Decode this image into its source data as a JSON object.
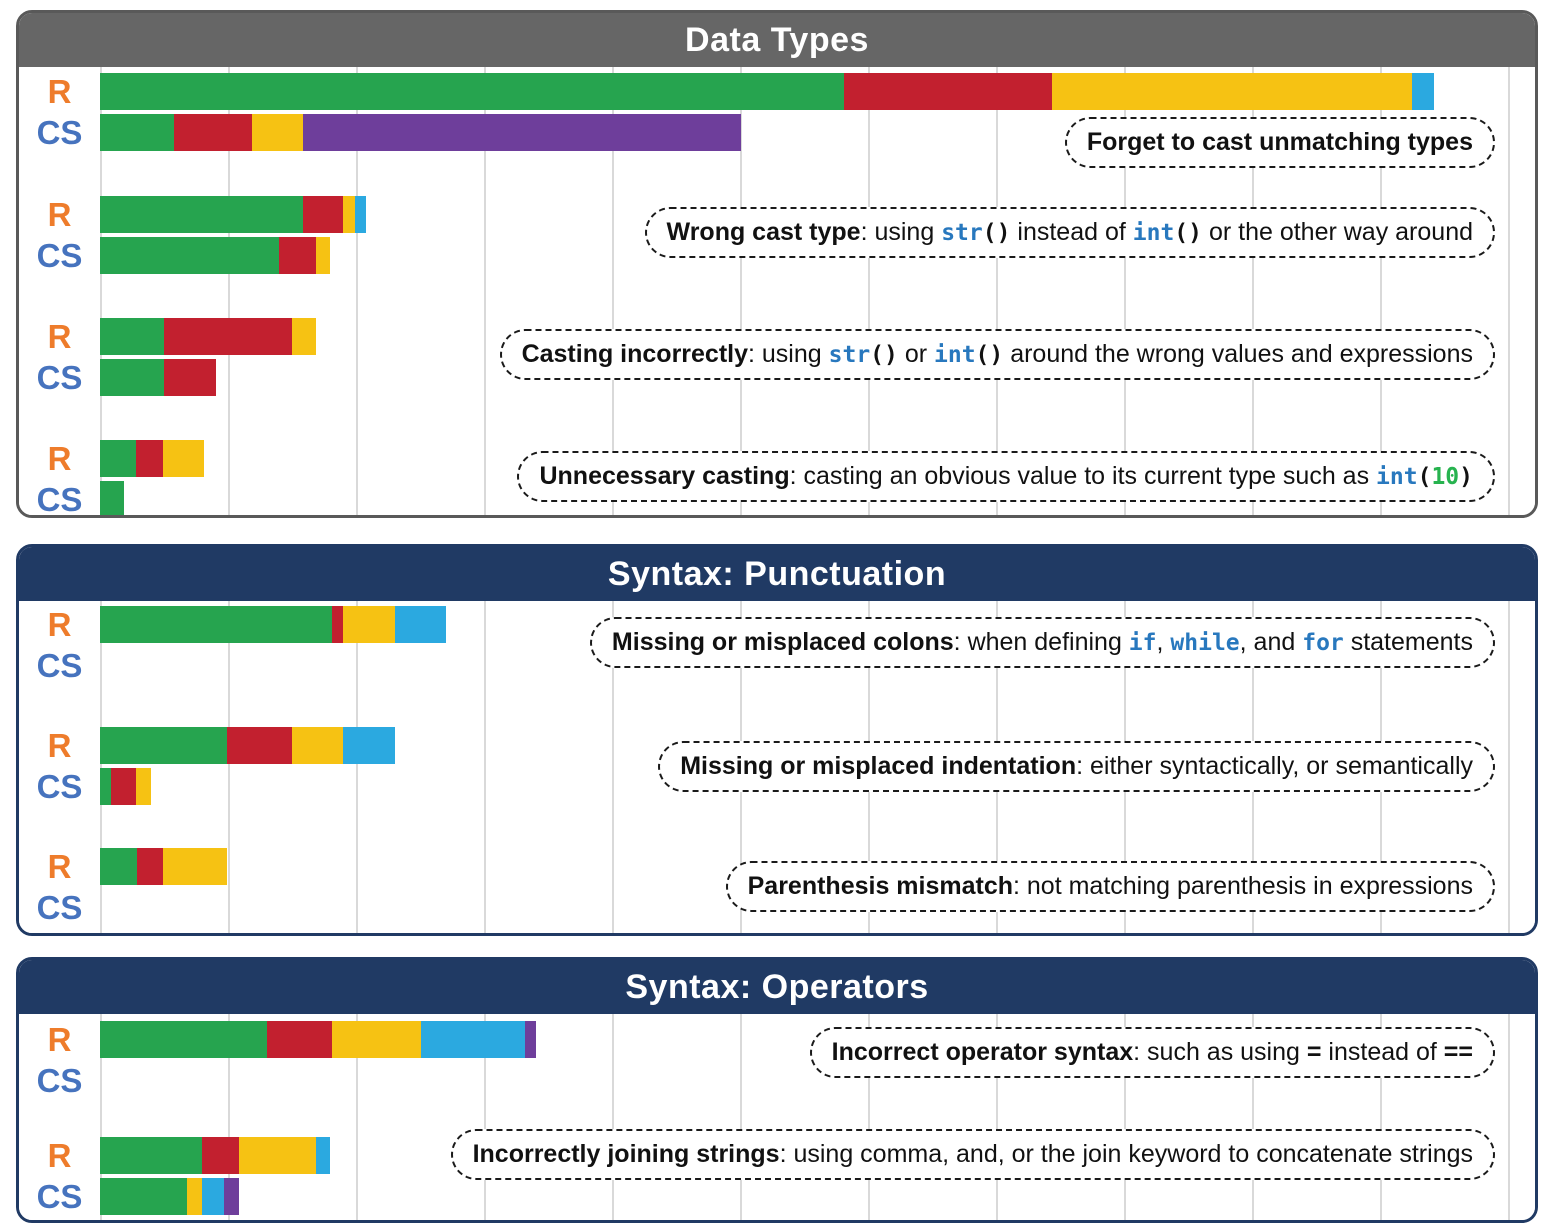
{
  "chart_data": {
    "type": "bar",
    "orientation": "horizontal",
    "stacked": true,
    "axes": {
      "x_tick_labels_visible": false,
      "gridlines": true,
      "gridline_color": "#d9d9d9",
      "gridline_spacing_pct_of_track": 8.94
    },
    "row_labels": {
      "r": "R",
      "cs": "CS"
    },
    "label_colors": {
      "r": "#ee7c2b",
      "cs": "#4673be"
    },
    "colors": {
      "green": "#26a44f",
      "red": "#c2202f",
      "yellow": "#f6c213",
      "blue": "#2ba9e0",
      "purple": "#6e3e9b"
    },
    "value_note": "segment sizes are percent of full chart track width (no numeric axis shown in source)",
    "panels": [
      {
        "title": "Data Types",
        "header_bg": "#666666",
        "border_color": "#595959",
        "groups": [
          {
            "annotation": {
              "text": "Forget to cast unmatching types",
              "parts": [
                {
                  "s": "b",
                  "text": "Forget to cast unmatching types"
                }
              ]
            },
            "r_segments": [
              {
                "color": "green",
                "pct": 52.0
              },
              {
                "color": "red",
                "pct": 14.5
              },
              {
                "color": "yellow",
                "pct": 25.2
              },
              {
                "color": "blue",
                "pct": 1.5
              }
            ],
            "cs_segments": [
              {
                "color": "green",
                "pct": 5.2
              },
              {
                "color": "red",
                "pct": 5.4
              },
              {
                "color": "yellow",
                "pct": 3.6
              },
              {
                "color": "purple",
                "pct": 30.6
              }
            ]
          },
          {
            "annotation": {
              "text": "Wrong cast type: using str() instead of int() or the other way around",
              "parts": [
                {
                  "s": "b",
                  "text": "Wrong cast type"
                },
                {
                  "s": "t",
                  "text": ": using "
                },
                {
                  "s": "c",
                  "text": "str"
                },
                {
                  "s": "k",
                  "text": "()"
                },
                {
                  "s": "t",
                  "text": " instead of "
                },
                {
                  "s": "c",
                  "text": "int"
                },
                {
                  "s": "k",
                  "text": "()"
                },
                {
                  "s": "t",
                  "text": " or the other way around"
                }
              ]
            },
            "r_segments": [
              {
                "color": "green",
                "pct": 14.2
              },
              {
                "color": "red",
                "pct": 2.8
              },
              {
                "color": "yellow",
                "pct": 0.8
              },
              {
                "color": "blue",
                "pct": 0.8
              }
            ],
            "cs_segments": [
              {
                "color": "green",
                "pct": 12.5
              },
              {
                "color": "red",
                "pct": 2.6
              },
              {
                "color": "yellow",
                "pct": 1.0
              }
            ]
          },
          {
            "annotation": {
              "text": "Casting incorrectly: using str() or int() around the wrong values and expressions",
              "parts": [
                {
                  "s": "b",
                  "text": "Casting incorrectly"
                },
                {
                  "s": "t",
                  "text": ": using "
                },
                {
                  "s": "c",
                  "text": "str"
                },
                {
                  "s": "k",
                  "text": "()"
                },
                {
                  "s": "t",
                  "text": " or "
                },
                {
                  "s": "c",
                  "text": "int"
                },
                {
                  "s": "k",
                  "text": "()"
                },
                {
                  "s": "t",
                  "text": " around the wrong values and expressions"
                }
              ]
            },
            "r_segments": [
              {
                "color": "green",
                "pct": 4.5
              },
              {
                "color": "red",
                "pct": 8.9
              },
              {
                "color": "yellow",
                "pct": 1.7
              }
            ],
            "cs_segments": [
              {
                "color": "green",
                "pct": 4.5
              },
              {
                "color": "red",
                "pct": 3.6
              }
            ]
          },
          {
            "annotation": {
              "text": "Unnecessary casting: casting an obvious value to its current type such as int(10)",
              "parts": [
                {
                  "s": "b",
                  "text": "Unnecessary casting"
                },
                {
                  "s": "t",
                  "text": ": casting an obvious value to its current type such as "
                },
                {
                  "s": "c",
                  "text": "int"
                },
                {
                  "s": "k",
                  "text": "("
                },
                {
                  "s": "g",
                  "text": "10"
                },
                {
                  "s": "k",
                  "text": ")"
                }
              ]
            },
            "r_segments": [
              {
                "color": "green",
                "pct": 2.5
              },
              {
                "color": "red",
                "pct": 1.9
              },
              {
                "color": "yellow",
                "pct": 2.9
              }
            ],
            "cs_segments": [
              {
                "color": "green",
                "pct": 1.7
              }
            ]
          }
        ]
      },
      {
        "title": "Syntax: Punctuation",
        "header_bg": "#203a64",
        "border_color": "#203a64",
        "groups": [
          {
            "annotation": {
              "text": "Missing or misplaced colons: when defining if, while, and for statements",
              "parts": [
                {
                  "s": "b",
                  "text": "Missing or misplaced colons"
                },
                {
                  "s": "t",
                  "text": ": when defining "
                },
                {
                  "s": "c",
                  "text": "if"
                },
                {
                  "s": "t",
                  "text": ", "
                },
                {
                  "s": "c",
                  "text": "while"
                },
                {
                  "s": "t",
                  "text": ", and "
                },
                {
                  "s": "c",
                  "text": "for"
                },
                {
                  "s": "t",
                  "text": " statements"
                }
              ]
            },
            "r_segments": [
              {
                "color": "green",
                "pct": 16.2
              },
              {
                "color": "red",
                "pct": 0.8
              },
              {
                "color": "yellow",
                "pct": 3.6
              },
              {
                "color": "blue",
                "pct": 3.6
              }
            ],
            "cs_segments": []
          },
          {
            "annotation": {
              "text": "Missing or misplaced indentation: either syntactically, or semantically",
              "parts": [
                {
                  "s": "b",
                  "text": "Missing or misplaced indentation"
                },
                {
                  "s": "t",
                  "text": ": either syntactically, or semantically"
                }
              ]
            },
            "r_segments": [
              {
                "color": "green",
                "pct": 8.9
              },
              {
                "color": "red",
                "pct": 4.5
              },
              {
                "color": "yellow",
                "pct": 3.6
              },
              {
                "color": "blue",
                "pct": 3.6
              }
            ],
            "cs_segments": [
              {
                "color": "green",
                "pct": 0.8
              },
              {
                "color": "red",
                "pct": 1.7
              },
              {
                "color": "yellow",
                "pct": 1.1
              }
            ]
          },
          {
            "annotation": {
              "text": "Parenthesis mismatch: not matching parenthesis in expressions",
              "parts": [
                {
                  "s": "b",
                  "text": "Parenthesis mismatch"
                },
                {
                  "s": "t",
                  "text": ": not matching parenthesis in expressions"
                }
              ]
            },
            "r_segments": [
              {
                "color": "green",
                "pct": 2.6
              },
              {
                "color": "red",
                "pct": 1.8
              },
              {
                "color": "yellow",
                "pct": 4.5
              }
            ],
            "cs_segments": []
          }
        ]
      },
      {
        "title": "Syntax: Operators",
        "header_bg": "#203a64",
        "border_color": "#203a64",
        "groups": [
          {
            "annotation": {
              "text": "Incorrect operator syntax: such as using = instead of ==",
              "parts": [
                {
                  "s": "b",
                  "text": "Incorrect operator syntax"
                },
                {
                  "s": "t",
                  "text": ": such as using "
                },
                {
                  "s": "e",
                  "text": "="
                },
                {
                  "s": "t",
                  "text": " instead of "
                },
                {
                  "s": "e",
                  "text": "=="
                }
              ]
            },
            "r_segments": [
              {
                "color": "green",
                "pct": 11.7
              },
              {
                "color": "red",
                "pct": 4.5
              },
              {
                "color": "yellow",
                "pct": 6.2
              },
              {
                "color": "blue",
                "pct": 7.3
              },
              {
                "color": "purple",
                "pct": 0.8
              }
            ],
            "cs_segments": []
          },
          {
            "annotation": {
              "text": "Incorrectly joining strings: using comma, and, or the join keyword to concatenate strings",
              "parts": [
                {
                  "s": "b",
                  "text": "Incorrectly joining strings"
                },
                {
                  "s": "t",
                  "text": ": using comma, and, or the join keyword to concatenate strings"
                }
              ]
            },
            "r_segments": [
              {
                "color": "green",
                "pct": 7.1
              },
              {
                "color": "red",
                "pct": 2.6
              },
              {
                "color": "yellow",
                "pct": 5.4
              },
              {
                "color": "blue",
                "pct": 1.0
              }
            ],
            "cs_segments": [
              {
                "color": "green",
                "pct": 6.1
              },
              {
                "color": "yellow",
                "pct": 1.0
              },
              {
                "color": "blue",
                "pct": 1.6
              },
              {
                "color": "purple",
                "pct": 1.0
              }
            ]
          }
        ]
      }
    ]
  }
}
